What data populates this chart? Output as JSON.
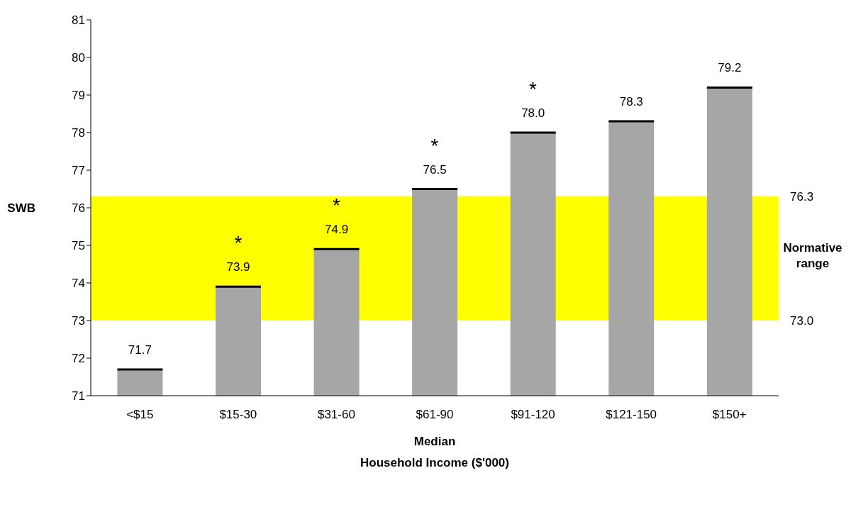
{
  "chart_data": {
    "type": "bar",
    "xlabel": "Household Income ($'000)",
    "ylabel": "SWB",
    "categories": [
      "<$15",
      "$15-30",
      "$31-60",
      "$61-90",
      "$91-120",
      "$121-150",
      "$150+"
    ],
    "values": [
      71.7,
      73.9,
      74.9,
      76.5,
      78.0,
      78.3,
      79.2
    ],
    "value_labels": [
      "71.7",
      "73.9",
      "74.9",
      "76.5",
      "78.0",
      "78.3",
      "79.2"
    ],
    "color": "#a6a6a6",
    "ylim": [
      71,
      81
    ],
    "yticks": [
      71,
      72,
      73,
      74,
      75,
      76,
      77,
      78,
      79,
      80,
      81
    ],
    "grid": false,
    "legend": false,
    "bands": [
      {
        "axis": "y",
        "from": 73.0,
        "to": 76.3,
        "label": "Normative range",
        "color": "#ffff00"
      }
    ],
    "annotations": [
      "76.3",
      "73.0",
      "*",
      "*",
      "*",
      "*",
      "Median"
    ]
  }
}
